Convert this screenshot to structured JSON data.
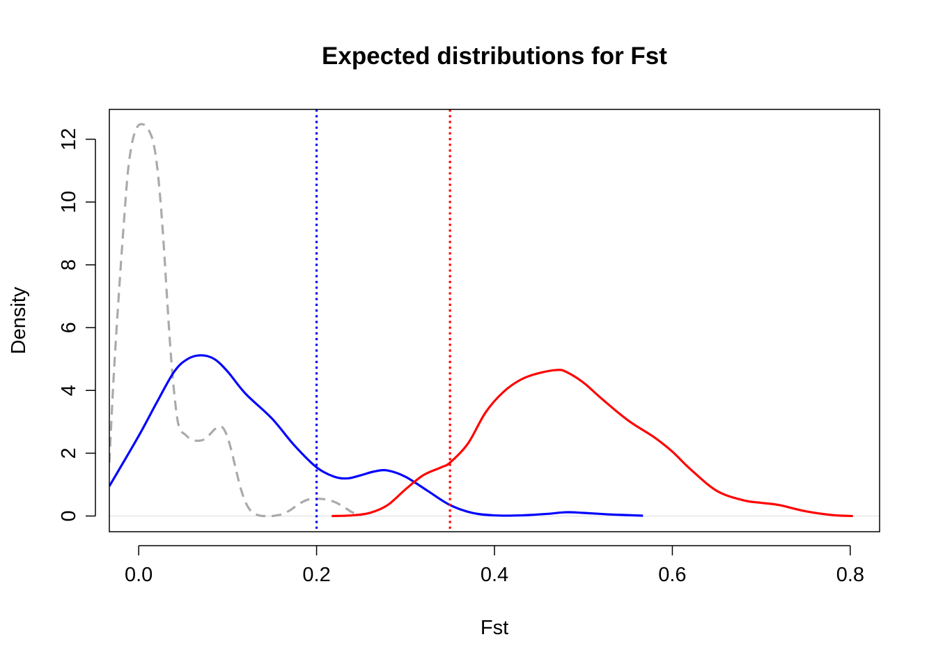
{
  "chart_data": {
    "type": "line",
    "title": "Expected distributions for Fst",
    "xlabel": "Fst",
    "ylabel": "Density",
    "xlim": [
      -0.033,
      0.833
    ],
    "ylim": [
      -0.5,
      12.95
    ],
    "xticks": [
      0.0,
      0.2,
      0.4,
      0.6,
      0.8
    ],
    "xtick_labels": [
      "0.0",
      "0.2",
      "0.4",
      "0.6",
      "0.8"
    ],
    "yticks": [
      0,
      2,
      4,
      6,
      8,
      10,
      12
    ],
    "ytick_labels": [
      "0",
      "2",
      "4",
      "6",
      "8",
      "10",
      "12"
    ],
    "grid": false,
    "baseline": 0,
    "series": [
      {
        "color": "#AAAAAA",
        "style": "dashed",
        "x": [
          -0.033,
          -0.028,
          -0.022,
          -0.016,
          -0.012,
          -0.008,
          -0.004,
          0.0,
          0.004,
          0.008,
          0.012,
          0.016,
          0.02,
          0.024,
          0.028,
          0.032,
          0.036,
          0.04,
          0.044,
          0.048,
          0.052,
          0.056,
          0.06,
          0.064,
          0.068,
          0.072,
          0.076,
          0.08,
          0.085,
          0.09,
          0.095,
          0.1,
          0.105,
          0.11,
          0.115,
          0.12,
          0.125,
          0.13,
          0.135,
          0.14,
          0.145,
          0.15,
          0.155,
          0.16,
          0.17,
          0.18,
          0.19,
          0.2,
          0.21,
          0.22,
          0.23,
          0.24,
          0.25
        ],
        "y": [
          1.7,
          4.5,
          7.2,
          9.6,
          11.0,
          11.8,
          12.25,
          12.45,
          12.48,
          12.42,
          12.25,
          11.95,
          11.3,
          10.2,
          8.7,
          6.9,
          5.2,
          3.9,
          3.0,
          2.7,
          2.6,
          2.5,
          2.45,
          2.4,
          2.4,
          2.42,
          2.5,
          2.6,
          2.75,
          2.85,
          2.8,
          2.5,
          2.0,
          1.4,
          0.85,
          0.45,
          0.2,
          0.08,
          0.02,
          0.0,
          0.0,
          0.0,
          0.02,
          0.05,
          0.18,
          0.38,
          0.52,
          0.55,
          0.53,
          0.45,
          0.3,
          0.12,
          0.02
        ]
      },
      {
        "color": "#0000FF",
        "style": "solid",
        "x": [
          -0.033,
          0.0,
          0.02,
          0.04,
          0.055,
          0.07,
          0.085,
          0.1,
          0.12,
          0.15,
          0.175,
          0.2,
          0.22,
          0.235,
          0.25,
          0.265,
          0.28,
          0.3,
          0.325,
          0.35,
          0.375,
          0.4,
          0.43,
          0.46,
          0.48,
          0.5,
          0.53,
          0.567
        ],
        "y": [
          0.95,
          2.55,
          3.6,
          4.6,
          5.0,
          5.12,
          5.0,
          4.6,
          3.9,
          3.1,
          2.25,
          1.55,
          1.25,
          1.2,
          1.3,
          1.42,
          1.45,
          1.25,
          0.8,
          0.35,
          0.1,
          0.02,
          0.02,
          0.07,
          0.12,
          0.1,
          0.05,
          0.01
        ]
      },
      {
        "color": "#FF0000",
        "style": "solid",
        "x": [
          0.217,
          0.24,
          0.26,
          0.28,
          0.3,
          0.32,
          0.34,
          0.35,
          0.37,
          0.39,
          0.41,
          0.43,
          0.45,
          0.47,
          0.48,
          0.5,
          0.52,
          0.55,
          0.58,
          0.6,
          0.62,
          0.65,
          0.68,
          0.7,
          0.72,
          0.75,
          0.78,
          0.803
        ],
        "y": [
          0.0,
          0.02,
          0.1,
          0.35,
          0.85,
          1.3,
          1.55,
          1.7,
          2.3,
          3.3,
          3.95,
          4.35,
          4.55,
          4.65,
          4.6,
          4.25,
          3.75,
          3.05,
          2.5,
          2.05,
          1.5,
          0.8,
          0.5,
          0.42,
          0.35,
          0.15,
          0.03,
          0.0
        ]
      }
    ],
    "vlines": [
      {
        "x": 0.2,
        "color": "#0000FF",
        "style": "dotted"
      },
      {
        "x": 0.35,
        "color": "#FF0000",
        "style": "dotted"
      }
    ]
  }
}
